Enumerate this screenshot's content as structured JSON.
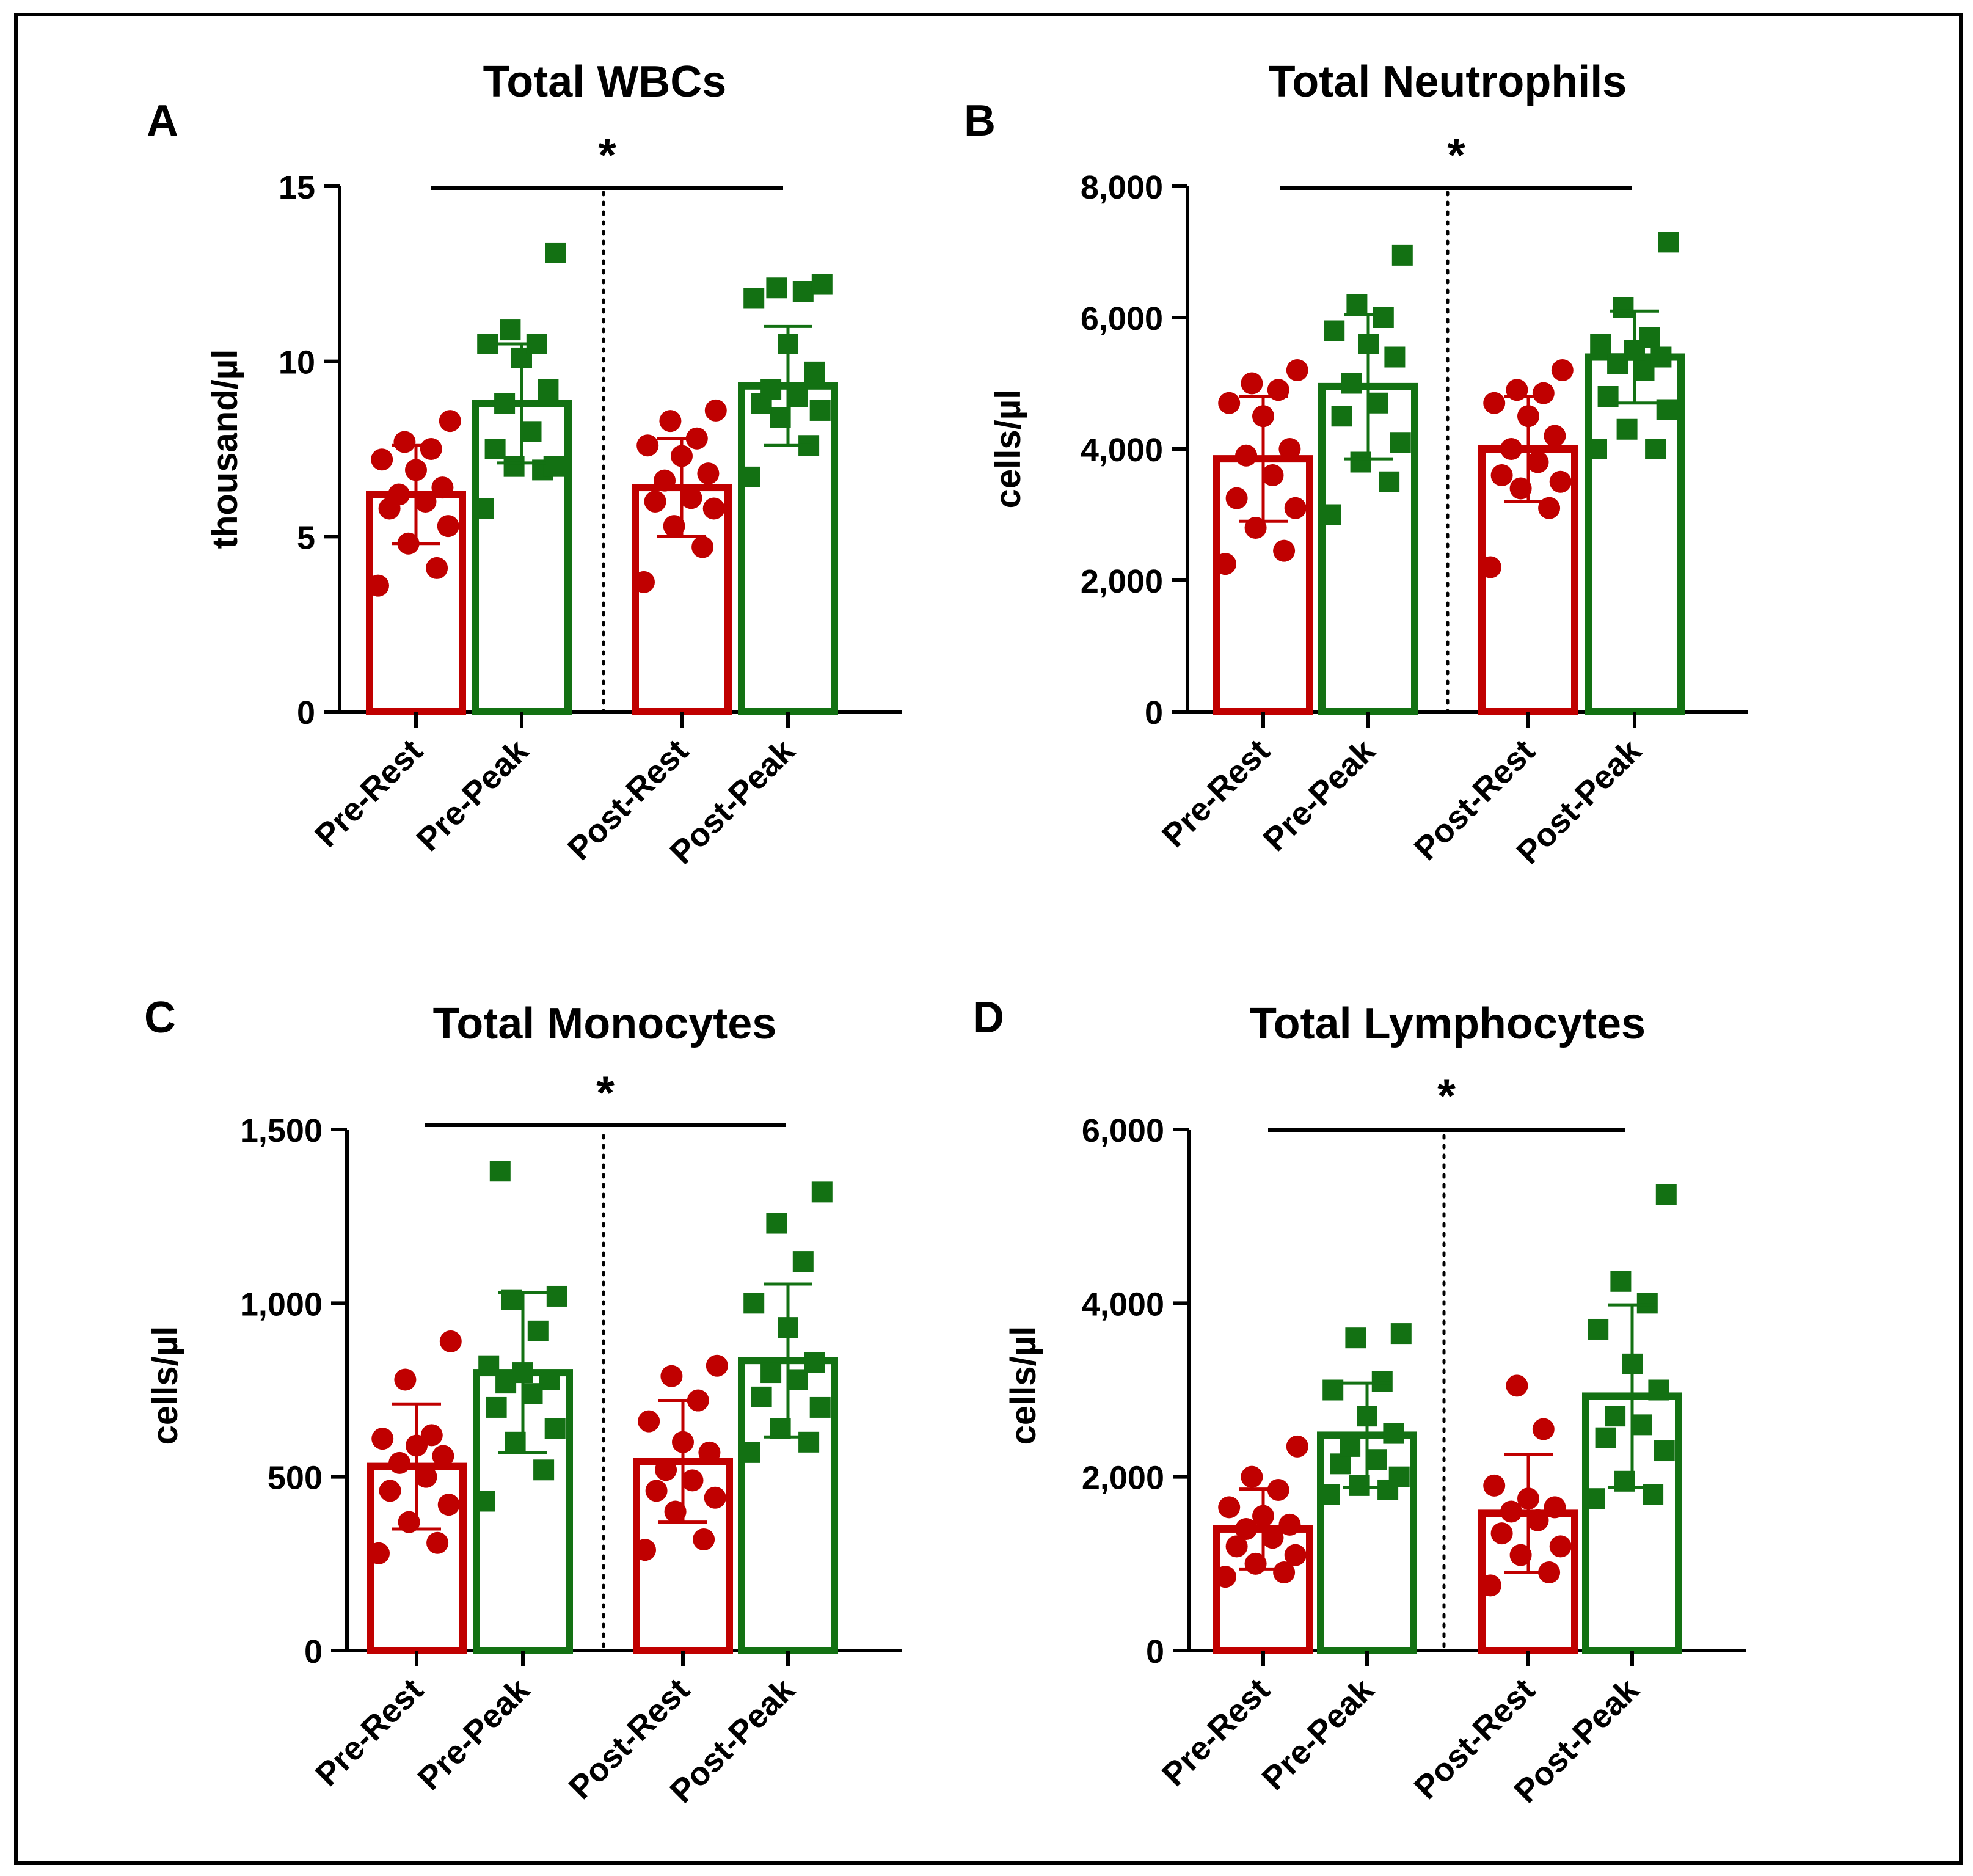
{
  "figure": {
    "colors": {
      "rest": "#c00000",
      "peak": "#137113",
      "axis": "#000000",
      "frame": "#000000"
    }
  },
  "chart_data": [
    {
      "panel": "A",
      "type": "bar",
      "title": "Total WBCs",
      "ylabel": "thousand/µl",
      "xlabel": "",
      "ylim": [
        0,
        15
      ],
      "yticks": [
        0,
        5,
        10,
        15
      ],
      "ytick_labels": [
        "0",
        "5",
        "10",
        "15"
      ],
      "categories": [
        "Pre-Rest",
        "Pre-Peak",
        "Post-Rest",
        "Post-Peak"
      ],
      "means": [
        6.2,
        8.8,
        6.4,
        9.3
      ],
      "sd": [
        1.4,
        1.7,
        1.4,
        1.7
      ],
      "points": [
        [
          3.6,
          4.1,
          4.8,
          5.3,
          5.8,
          6.0,
          6.2,
          6.4,
          6.9,
          7.2,
          7.5,
          7.7,
          8.3
        ],
        [
          5.8,
          6.9,
          7.0,
          7.0,
          7.5,
          8.0,
          8.8,
          9.2,
          10.1,
          10.5,
          10.5,
          10.9,
          13.1
        ],
        [
          3.7,
          4.7,
          5.3,
          5.8,
          6.0,
          6.1,
          6.6,
          6.8,
          7.3,
          7.6,
          7.8,
          8.3,
          8.6
        ],
        [
          6.7,
          7.6,
          8.4,
          8.6,
          8.8,
          9.0,
          9.2,
          9.7,
          10.5,
          11.8,
          12.0,
          12.1,
          12.2
        ]
      ],
      "significance": "*"
    },
    {
      "panel": "B",
      "type": "bar",
      "title": "Total Neutrophils",
      "ylabel": "cells/µl",
      "xlabel": "",
      "ylim": [
        0,
        8000
      ],
      "yticks": [
        0,
        2000,
        4000,
        6000,
        8000
      ],
      "ytick_labels": [
        "0",
        "2,000",
        "4,000",
        "6,000",
        "8,000"
      ],
      "categories": [
        "Pre-Rest",
        "Pre-Peak",
        "Post-Rest",
        "Post-Peak"
      ],
      "means": [
        3850,
        4950,
        4000,
        5400
      ],
      "sd": [
        950,
        1100,
        800,
        700
      ],
      "points": [
        [
          2250,
          2450,
          2800,
          3100,
          3250,
          3600,
          3900,
          4000,
          4500,
          4700,
          4900,
          5000,
          5200
        ],
        [
          3000,
          3500,
          3800,
          4100,
          4500,
          4700,
          5000,
          5400,
          5600,
          5800,
          6000,
          6200,
          6950
        ],
        [
          2200,
          3100,
          3400,
          3500,
          3600,
          3800,
          4000,
          4200,
          4500,
          4700,
          4850,
          4900,
          5200
        ],
        [
          4000,
          4000,
          4300,
          4600,
          4800,
          5200,
          5300,
          5400,
          5500,
          5600,
          5700,
          6150,
          7150
        ]
      ],
      "significance": "*"
    },
    {
      "panel": "C",
      "type": "bar",
      "title": "Total Monocytes",
      "ylabel": "cells/µl",
      "xlabel": "",
      "ylim": [
        0,
        1500
      ],
      "yticks": [
        0,
        500,
        1000,
        1500
      ],
      "ytick_labels": [
        "0",
        "500",
        "1,000",
        "1,500"
      ],
      "categories": [
        "Pre-Rest",
        "Pre-Peak",
        "Post-Rest",
        "Post-Peak"
      ],
      "means": [
        530,
        800,
        545,
        835
      ],
      "sd": [
        180,
        230,
        175,
        220
      ],
      "points": [
        [
          280,
          310,
          370,
          420,
          460,
          500,
          540,
          560,
          590,
          610,
          620,
          780,
          890
        ],
        [
          430,
          520,
          600,
          640,
          700,
          740,
          770,
          780,
          800,
          820,
          920,
          1010,
          1020,
          1380
        ],
        [
          290,
          320,
          400,
          440,
          460,
          490,
          520,
          570,
          600,
          660,
          720,
          790,
          820
        ],
        [
          570,
          600,
          640,
          700,
          730,
          780,
          800,
          830,
          930,
          1000,
          1120,
          1230,
          1320
        ]
      ],
      "significance": "*"
    },
    {
      "panel": "D",
      "type": "bar",
      "title": "Total Lymphocytes",
      "ylabel": "cells/µl",
      "xlabel": "",
      "ylim": [
        0,
        6000
      ],
      "yticks": [
        0,
        2000,
        4000,
        6000
      ],
      "ytick_labels": [
        "0",
        "2,000",
        "4,000",
        "6,000"
      ],
      "categories": [
        "Pre-Rest",
        "Pre-Peak",
        "Post-Rest",
        "Post-Peak"
      ],
      "means": [
        1400,
        2480,
        1580,
        2930
      ],
      "sd": [
        460,
        600,
        680,
        1050
      ],
      "points": [
        [
          850,
          900,
          1000,
          1100,
          1200,
          1300,
          1400,
          1450,
          1550,
          1650,
          1850,
          2000,
          2350
        ],
        [
          1800,
          1850,
          1900,
          2000,
          2150,
          2200,
          2350,
          2500,
          2700,
          3000,
          3100,
          3600,
          3650
        ],
        [
          750,
          900,
          1100,
          1200,
          1350,
          1500,
          1600,
          1650,
          1750,
          1900,
          2550,
          3050
        ],
        [
          1750,
          1800,
          1950,
          2300,
          2450,
          2600,
          2700,
          3000,
          3300,
          3700,
          4000,
          4250,
          5250
        ]
      ],
      "significance": "*"
    }
  ]
}
